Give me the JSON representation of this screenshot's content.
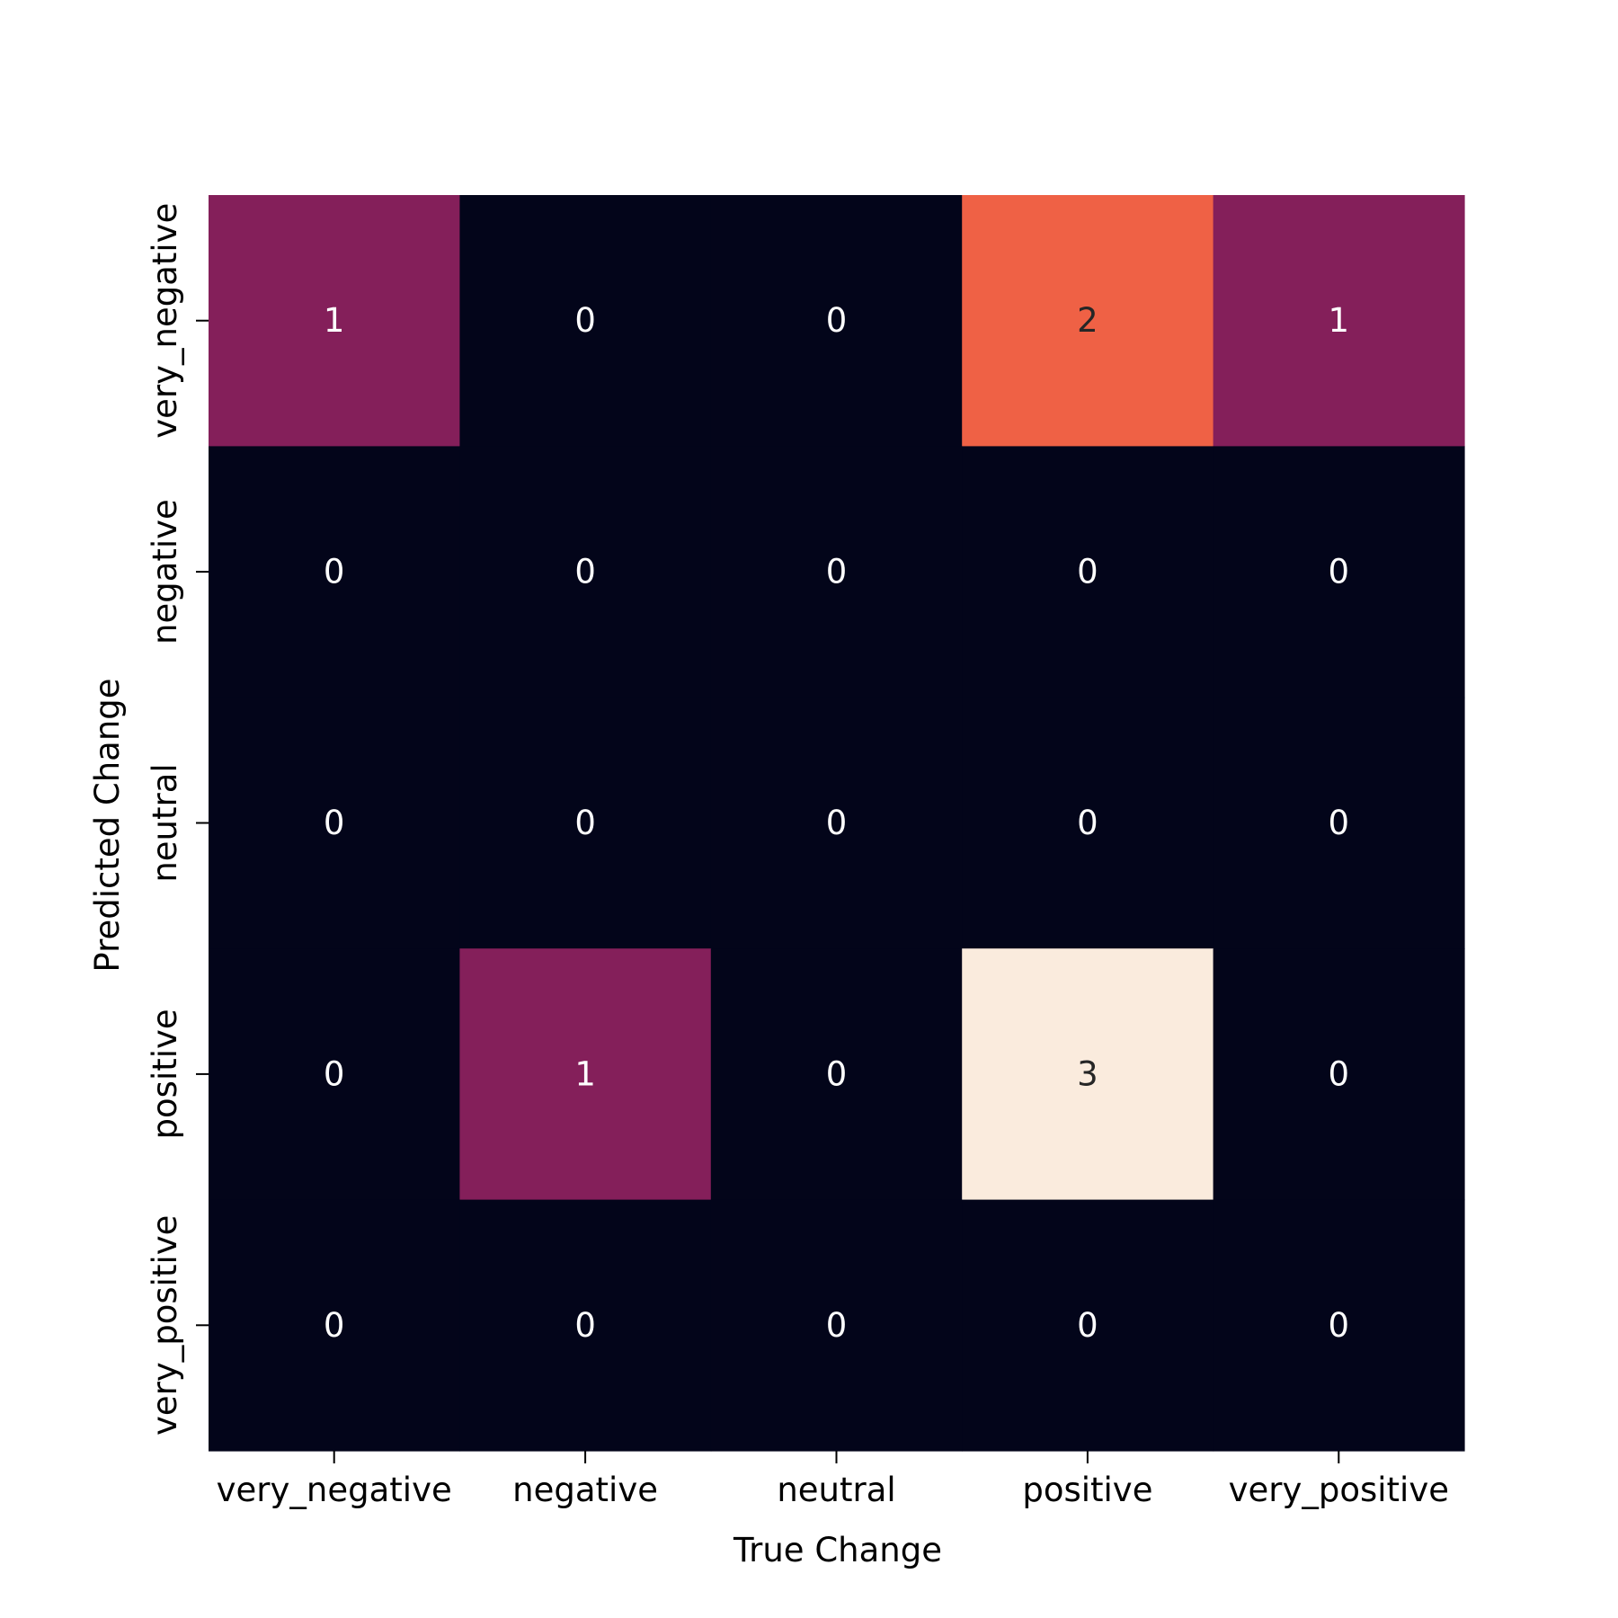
{
  "chart_data": {
    "type": "heatmap",
    "title": "",
    "xlabel": "True Change",
    "ylabel": "Predicted Change",
    "x_categories": [
      "very_negative",
      "negative",
      "neutral",
      "positive",
      "very_positive"
    ],
    "y_categories": [
      "very_negative",
      "negative",
      "neutral",
      "positive",
      "very_positive"
    ],
    "values": [
      [
        1,
        0,
        0,
        2,
        1
      ],
      [
        0,
        0,
        0,
        0,
        0
      ],
      [
        0,
        0,
        0,
        0,
        0
      ],
      [
        0,
        1,
        0,
        3,
        0
      ],
      [
        0,
        0,
        0,
        0,
        0
      ]
    ],
    "value_range": [
      0,
      3
    ],
    "colormap": "rocket",
    "colorbar": false,
    "annotations": true,
    "grid": false
  }
}
